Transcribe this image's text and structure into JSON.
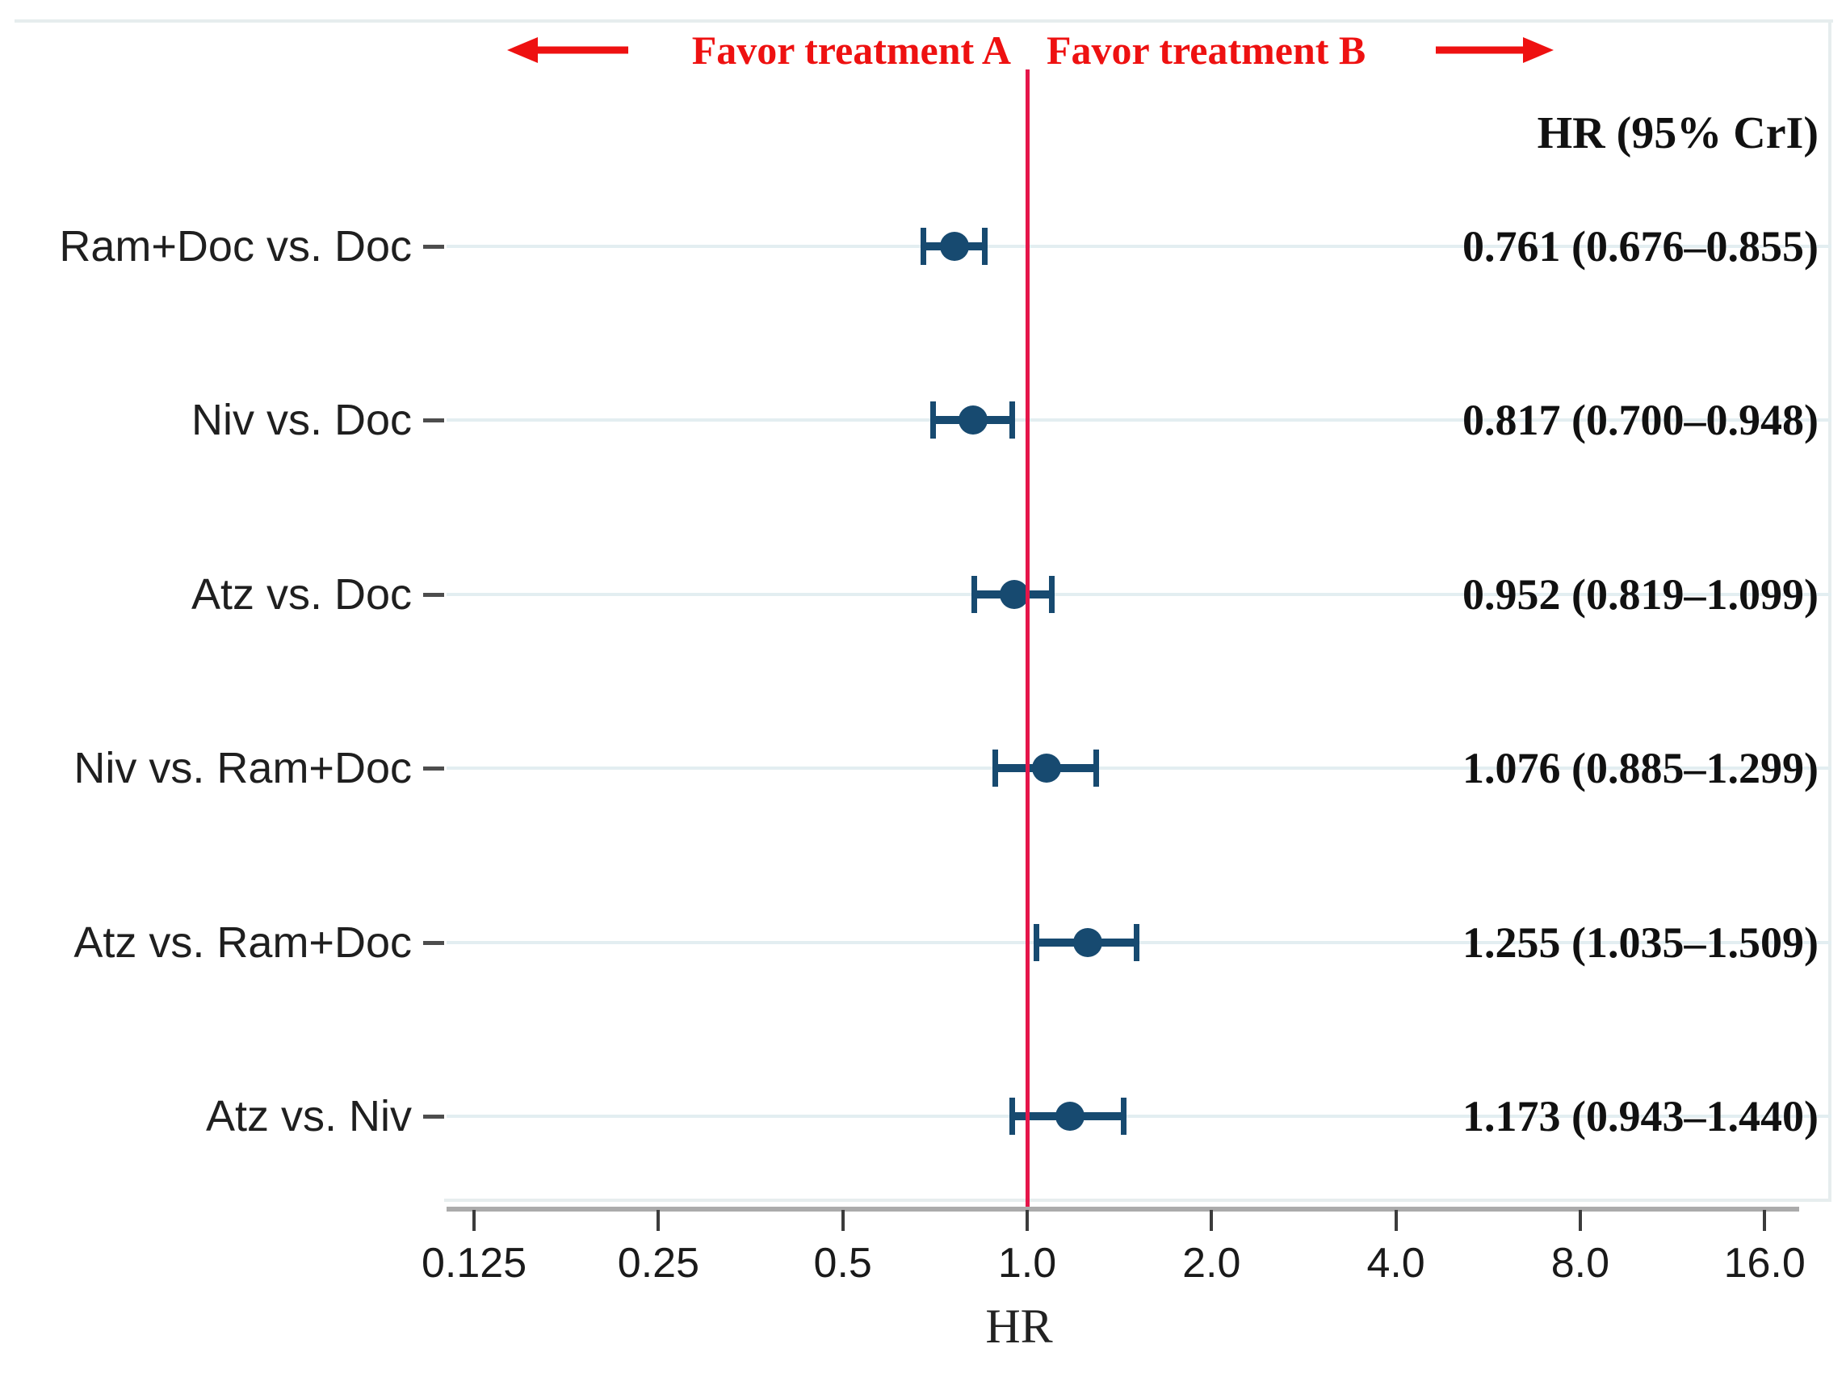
{
  "chart_data": {
    "type": "forest",
    "x_scale": "log2",
    "xlabel": "HR",
    "column_header": "HR (95% CrI)",
    "direction_labels": {
      "left": "Favor treatment A",
      "right": "Favor treatment B"
    },
    "reference_value": 1.0,
    "x_tick_values": [
      0.125,
      0.25,
      0.5,
      1.0,
      2.0,
      4.0,
      8.0,
      16.0
    ],
    "x_tick_labels": [
      "0.125",
      "0.25",
      "0.5",
      "1.0",
      "2.0",
      "4.0",
      "8.0",
      "16.0"
    ],
    "x_range": [
      0.125,
      16.0
    ],
    "comparisons": [
      {
        "label": "Ram+Doc vs. Doc",
        "hr": 0.761,
        "ci_lower": 0.676,
        "ci_upper": 0.855,
        "display": "0.761 (0.676–0.855)"
      },
      {
        "label": "Niv vs. Doc",
        "hr": 0.817,
        "ci_lower": 0.7,
        "ci_upper": 0.948,
        "display": "0.817 (0.700–0.948)"
      },
      {
        "label": "Atz vs. Doc",
        "hr": 0.952,
        "ci_lower": 0.819,
        "ci_upper": 1.099,
        "display": "0.952 (0.819–1.099)"
      },
      {
        "label": "Niv vs. Ram+Doc",
        "hr": 1.076,
        "ci_lower": 0.885,
        "ci_upper": 1.299,
        "display": "1.076 (0.885–1.299)"
      },
      {
        "label": "Atz vs. Ram+Doc",
        "hr": 1.255,
        "ci_lower": 1.035,
        "ci_upper": 1.509,
        "display": "1.255 (1.035–1.509)"
      },
      {
        "label": "Atz vs. Niv",
        "hr": 1.173,
        "ci_lower": 0.943,
        "ci_upper": 1.44,
        "display": "1.173 (0.943–1.440)"
      }
    ],
    "colors": {
      "marker": "#174a70",
      "ci": "#174a70",
      "reference_line": "#e5164a",
      "annotation_red": "#ee1111",
      "gridline": "#e3eef1",
      "frame": "#e6edee",
      "axis": "#ababab"
    },
    "legend": "none",
    "grid": "horizontal-row-lines"
  }
}
